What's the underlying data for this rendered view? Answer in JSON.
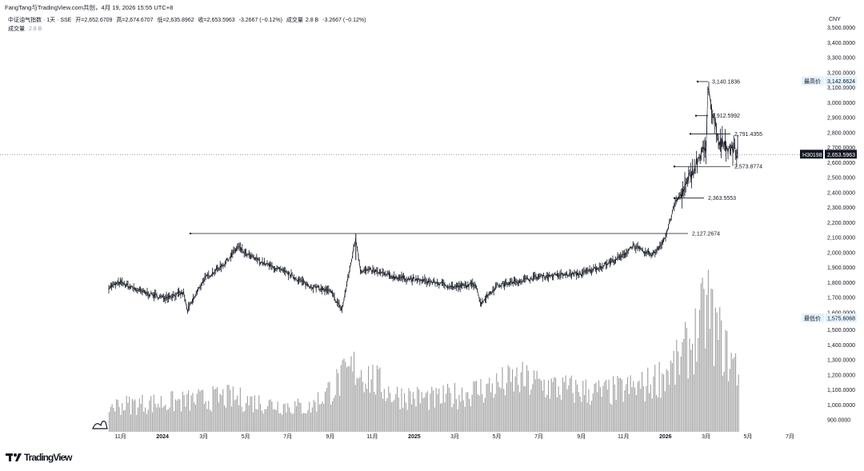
{
  "header": {
    "attribution": "FangTang与TradingView.com共创，4月 19, 2026 15:55 UTC+8"
  },
  "legend": {
    "symbol": "中证油气指数 · 1天 · SSE",
    "open": "开=2,652.6709",
    "high": "高=2,674.6707",
    "low": "低=2,635.8962",
    "close": "收=2,653.5963",
    "change": "-3.2667 (−0.12%)",
    "volume_label": "成交量",
    "volume_value": "2.8 B",
    "volume_change": "-3.2667 (−0.12%)",
    "volume_row_label": "成交量",
    "volume_row_value": "2.8 B"
  },
  "price_axis": {
    "currency": "CNY",
    "ticks": [
      "3,500.0000",
      "3,400.0000",
      "3,300.0000",
      "3,200.0000",
      "3,100.0000",
      "3,000.0000",
      "2,900.0000",
      "2,800.0000",
      "2,700.0000",
      "2,600.0000",
      "2,500.0000",
      "2,400.0000",
      "2,300.0000",
      "2,200.0000",
      "2,100.0000",
      "2,000.0000",
      "1,900.0000",
      "1,800.0000",
      "1,700.0000",
      "1,600.0000",
      "1,500.0000",
      "1,400.0000",
      "1,300.0000",
      "1,200.0000",
      "1,100.0000",
      "1,000.0000",
      "900.0000"
    ],
    "high_tag_label": "最高价",
    "high_tag_value": "3,142.6624",
    "low_tag_label": "最低价",
    "low_tag_value": "1,575.6068",
    "last_symbol": "H30198",
    "last_value": "2,653.5963"
  },
  "time_axis": {
    "ticks": [
      "11月",
      "2024",
      "3月",
      "5月",
      "7月",
      "9月",
      "11月",
      "2025",
      "3月",
      "5月",
      "7月",
      "9月",
      "11月",
      "2026",
      "3月",
      "5月",
      "7月"
    ]
  },
  "annotations": [
    {
      "label": "3,140.1836",
      "price": 3140.18
    },
    {
      "label": "2,912.5992",
      "price": 2912.6
    },
    {
      "label": "2,791.4355",
      "price": 2791.44
    },
    {
      "label": "2,573.8774",
      "price": 2573.88
    },
    {
      "label": "2,363.5553",
      "price": 2363.56
    },
    {
      "label": "2,127.2674",
      "price": 2127.27
    }
  ],
  "branding": {
    "logo_text": "TradingView"
  },
  "chart_data": {
    "type": "line",
    "title": "中证油气指数 · 1天 · SSE",
    "currency": "CNY",
    "ylim": [
      900,
      3500
    ],
    "x": [
      "2023-10-15",
      "2023-11-01",
      "2023-12-01",
      "2024-01-01",
      "2024-02-01",
      "2024-02-06",
      "2024-03-01",
      "2024-04-01",
      "2024-04-20",
      "2024-05-01",
      "2024-06-01",
      "2024-07-01",
      "2024-08-01",
      "2024-09-01",
      "2024-09-18",
      "2024-10-08",
      "2024-10-15",
      "2024-11-01",
      "2024-12-01",
      "2025-01-01",
      "2025-02-01",
      "2025-03-01",
      "2025-04-01",
      "2025-04-07",
      "2025-05-01",
      "2025-06-01",
      "2025-07-01",
      "2025-08-01",
      "2025-09-01",
      "2025-10-01",
      "2025-11-01",
      "2025-11-15",
      "2025-12-01",
      "2025-12-15",
      "2026-01-01",
      "2026-01-15",
      "2026-02-01",
      "2026-02-15",
      "2026-03-01",
      "2026-03-04",
      "2026-03-09",
      "2026-03-15",
      "2026-03-20",
      "2026-03-27",
      "2026-04-01",
      "2026-04-10",
      "2026-04-17"
    ],
    "series": [
      {
        "values": [
          1770,
          1800,
          1740,
          1700,
          1730,
          1610,
          1820,
          1930,
          2040,
          1990,
          1920,
          1860,
          1780,
          1740,
          1620,
          2100,
          1880,
          1880,
          1840,
          1820,
          1800,
          1770,
          1790,
          1660,
          1780,
          1810,
          1840,
          1850,
          1860,
          1910,
          1980,
          2050,
          2000,
          1990,
          2100,
          2330,
          2450,
          2600,
          2700,
          3140,
          2900,
          2850,
          2700,
          2750,
          2700,
          2700,
          2653
        ]
      }
    ],
    "volume": {
      "name": "成交量",
      "ylim": [
        0,
        6.2
      ],
      "unit": "B",
      "x": [
        "2023-10-15",
        "2023-12-01",
        "2024-02-01",
        "2024-04-01",
        "2024-06-01",
        "2024-08-01",
        "2024-10-08",
        "2024-12-01",
        "2025-02-01",
        "2025-04-01",
        "2025-06-01",
        "2025-08-01",
        "2025-10-01",
        "2025-12-01",
        "2026-01-15",
        "2026-02-15",
        "2026-03-04",
        "2026-03-10",
        "2026-04-01",
        "2026-04-17"
      ],
      "values": [
        1.2,
        1.3,
        1.4,
        1.6,
        1.3,
        1.1,
        3.0,
        1.7,
        1.5,
        1.9,
        2.4,
        2.0,
        1.8,
        2.1,
        3.0,
        4.5,
        5.9,
        5.0,
        3.5,
        2.8
      ]
    }
  }
}
